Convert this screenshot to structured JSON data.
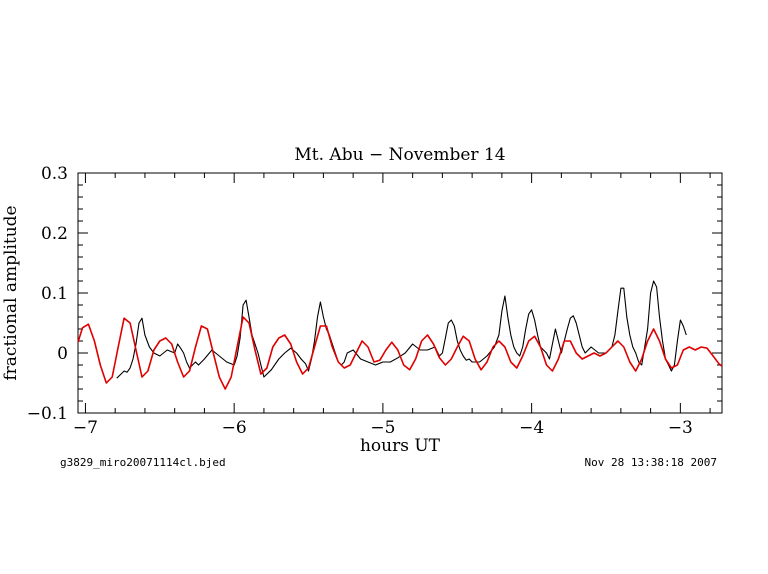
{
  "chart_data": {
    "type": "line",
    "title": "Mt. Abu − November 14",
    "xlabel": "hours UT",
    "ylabel": "fractional amplitude",
    "xlim": [
      -7.05,
      -2.72
    ],
    "ylim": [
      -0.1,
      0.3
    ],
    "x_ticks": [
      -7,
      -6,
      -5,
      -4,
      -3
    ],
    "x_tick_labels": [
      "−7",
      "−6",
      "−5",
      "−4",
      "−3"
    ],
    "y_ticks": [
      -0.1,
      0,
      0.1,
      0.2,
      0.3
    ],
    "y_tick_labels": [
      "−0.1",
      "0",
      "0.1",
      "0.2",
      "0.3"
    ],
    "grid": false,
    "footer_left": "g3829_miro20071114cl.bjed",
    "footer_right": "Nov 28 13:38:18 2007",
    "series": [
      {
        "color": "#000000",
        "x": [
          -6.79,
          -6.76,
          -6.74,
          -6.72,
          -6.7,
          -6.68,
          -6.66,
          -6.64,
          -6.62,
          -6.6,
          -6.57,
          -6.54,
          -6.5,
          -6.45,
          -6.4,
          -6.38,
          -6.36,
          -6.34,
          -6.32,
          -6.3,
          -6.28,
          -6.26,
          -6.24,
          -6.2,
          -6.15,
          -6.1,
          -6.05,
          -6.0,
          -5.98,
          -5.96,
          -5.94,
          -5.92,
          -5.9,
          -5.88,
          -5.86,
          -5.84,
          -5.82,
          -5.8,
          -5.75,
          -5.7,
          -5.66,
          -5.62,
          -5.58,
          -5.55,
          -5.52,
          -5.5,
          -5.48,
          -5.46,
          -5.44,
          -5.42,
          -5.4,
          -5.38,
          -5.36,
          -5.34,
          -5.32,
          -5.3,
          -5.28,
          -5.26,
          -5.24,
          -5.2,
          -5.15,
          -5.1,
          -5.05,
          -5.0,
          -4.95,
          -4.9,
          -4.85,
          -4.8,
          -4.75,
          -4.7,
          -4.65,
          -4.62,
          -4.6,
          -4.58,
          -4.56,
          -4.54,
          -4.52,
          -4.5,
          -4.48,
          -4.46,
          -4.44,
          -4.42,
          -4.4,
          -4.35,
          -4.3,
          -4.25,
          -4.22,
          -4.2,
          -4.18,
          -4.16,
          -4.14,
          -4.12,
          -4.1,
          -4.08,
          -4.06,
          -4.04,
          -4.02,
          -4.0,
          -3.98,
          -3.96,
          -3.94,
          -3.92,
          -3.9,
          -3.88,
          -3.86,
          -3.84,
          -3.8,
          -3.78,
          -3.76,
          -3.74,
          -3.72,
          -3.7,
          -3.68,
          -3.66,
          -3.64,
          -3.6,
          -3.55,
          -3.5,
          -3.46,
          -3.44,
          -3.42,
          -3.4,
          -3.38,
          -3.36,
          -3.34,
          -3.32,
          -3.3,
          -3.28,
          -3.26,
          -3.24,
          -3.22,
          -3.2,
          -3.18,
          -3.16,
          -3.14,
          -3.12,
          -3.1,
          -3.08,
          -3.06,
          -3.04,
          -3.02,
          -3.0,
          -2.98,
          -2.96
        ],
        "y": [
          -0.042,
          -0.035,
          -0.03,
          -0.032,
          -0.025,
          -0.01,
          0.015,
          0.05,
          0.058,
          0.03,
          0.01,
          0.0,
          -0.005,
          0.005,
          0.0,
          0.015,
          0.008,
          0.0,
          -0.015,
          -0.025,
          -0.02,
          -0.015,
          -0.02,
          -0.01,
          0.005,
          -0.005,
          -0.015,
          -0.02,
          -0.005,
          0.025,
          0.08,
          0.088,
          0.06,
          0.03,
          0.015,
          0.0,
          -0.02,
          -0.04,
          -0.028,
          -0.01,
          0.0,
          0.008,
          0.0,
          -0.01,
          -0.018,
          -0.03,
          -0.01,
          0.02,
          0.06,
          0.085,
          0.06,
          0.04,
          0.03,
          0.015,
          0.0,
          -0.015,
          -0.02,
          -0.015,
          0.0,
          0.005,
          -0.01,
          -0.015,
          -0.02,
          -0.015,
          -0.015,
          -0.008,
          0.0,
          0.015,
          0.005,
          0.005,
          0.01,
          -0.005,
          0.0,
          0.025,
          0.05,
          0.055,
          0.045,
          0.02,
          0.005,
          -0.005,
          -0.012,
          -0.01,
          -0.015,
          -0.015,
          -0.005,
          0.01,
          0.03,
          0.07,
          0.095,
          0.06,
          0.03,
          0.01,
          0.0,
          -0.005,
          0.01,
          0.04,
          0.065,
          0.072,
          0.055,
          0.03,
          0.01,
          0.005,
          0.0,
          -0.01,
          0.015,
          0.04,
          0.0,
          0.02,
          0.04,
          0.058,
          0.062,
          0.05,
          0.03,
          0.01,
          0.0,
          0.01,
          0.0,
          0.0,
          0.01,
          0.03,
          0.07,
          0.108,
          0.108,
          0.06,
          0.03,
          0.01,
          0.0,
          -0.015,
          -0.02,
          0.01,
          0.04,
          0.1,
          0.12,
          0.11,
          0.06,
          0.02,
          -0.01,
          -0.02,
          -0.03,
          -0.02,
          0.02,
          0.055,
          0.045,
          0.03
        ]
      },
      {
        "color": "#e00000",
        "x": [
          -7.05,
          -7.02,
          -6.98,
          -6.94,
          -6.9,
          -6.86,
          -6.82,
          -6.78,
          -6.74,
          -6.7,
          -6.66,
          -6.62,
          -6.58,
          -6.54,
          -6.5,
          -6.46,
          -6.42,
          -6.38,
          -6.34,
          -6.3,
          -6.26,
          -6.22,
          -6.18,
          -6.14,
          -6.1,
          -6.06,
          -6.02,
          -5.98,
          -5.94,
          -5.9,
          -5.86,
          -5.82,
          -5.78,
          -5.74,
          -5.7,
          -5.66,
          -5.62,
          -5.58,
          -5.54,
          -5.5,
          -5.46,
          -5.42,
          -5.38,
          -5.34,
          -5.3,
          -5.26,
          -5.22,
          -5.18,
          -5.14,
          -5.1,
          -5.06,
          -5.02,
          -4.98,
          -4.94,
          -4.9,
          -4.86,
          -4.82,
          -4.78,
          -4.74,
          -4.7,
          -4.66,
          -4.62,
          -4.58,
          -4.54,
          -4.5,
          -4.46,
          -4.42,
          -4.38,
          -4.34,
          -4.3,
          -4.26,
          -4.22,
          -4.18,
          -4.14,
          -4.1,
          -4.06,
          -4.02,
          -3.98,
          -3.94,
          -3.9,
          -3.86,
          -3.82,
          -3.78,
          -3.74,
          -3.7,
          -3.66,
          -3.62,
          -3.58,
          -3.54,
          -3.5,
          -3.46,
          -3.42,
          -3.38,
          -3.34,
          -3.3,
          -3.26,
          -3.22,
          -3.18,
          -3.14,
          -3.1,
          -3.06,
          -3.02,
          -2.98,
          -2.94,
          -2.9,
          -2.86,
          -2.82,
          -2.78,
          -2.74,
          -2.72
        ],
        "y": [
          0.018,
          0.042,
          0.048,
          0.02,
          -0.02,
          -0.05,
          -0.04,
          0.01,
          0.058,
          0.05,
          0.005,
          -0.04,
          -0.03,
          0.005,
          0.02,
          0.025,
          0.015,
          -0.015,
          -0.04,
          -0.03,
          0.01,
          0.045,
          0.04,
          0.0,
          -0.04,
          -0.06,
          -0.04,
          0.01,
          0.06,
          0.05,
          0.005,
          -0.035,
          -0.025,
          0.01,
          0.025,
          0.03,
          0.015,
          -0.015,
          -0.035,
          -0.025,
          0.01,
          0.045,
          0.045,
          0.01,
          -0.015,
          -0.025,
          -0.02,
          0.0,
          0.02,
          0.01,
          -0.015,
          -0.012,
          0.005,
          0.018,
          0.005,
          -0.02,
          -0.028,
          -0.01,
          0.02,
          0.03,
          0.015,
          -0.008,
          -0.02,
          -0.01,
          0.01,
          0.028,
          0.02,
          -0.01,
          -0.028,
          -0.015,
          0.01,
          0.02,
          0.01,
          -0.015,
          -0.025,
          -0.005,
          0.02,
          0.028,
          0.01,
          -0.02,
          -0.03,
          -0.01,
          0.02,
          0.02,
          0.0,
          -0.01,
          -0.005,
          0.0,
          -0.005,
          0.0,
          0.01,
          0.02,
          0.01,
          -0.015,
          -0.03,
          -0.01,
          0.02,
          0.04,
          0.02,
          -0.01,
          -0.025,
          -0.02,
          0.005,
          0.01,
          0.005,
          0.01,
          0.008,
          -0.005,
          -0.018,
          -0.022
        ]
      }
    ]
  }
}
